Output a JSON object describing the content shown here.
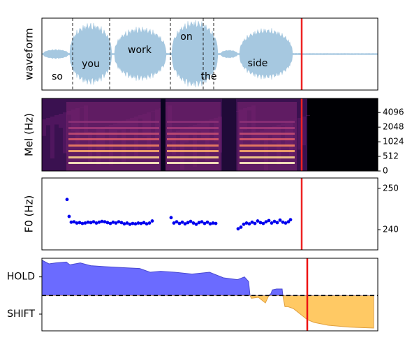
{
  "chart_data": [
    {
      "type": "waveform",
      "ylabel": "waveform",
      "xlim": [
        0,
        481
      ],
      "words": [
        "so",
        "you",
        "work",
        "on",
        "the",
        "side"
      ],
      "word_x": [
        22,
        70,
        140,
        207,
        239,
        309
      ],
      "boundaries": [
        44,
        97,
        184,
        231,
        246
      ],
      "marker_x": 372,
      "marker_color": "#ee2222",
      "color": "#a6c8e0"
    },
    {
      "type": "spectrogram",
      "ylabel": "Mel (Hz)",
      "xlim": [
        0,
        481
      ],
      "yscale": "symlog2",
      "linthresh": 512,
      "ylim": [
        0,
        8000
      ],
      "yticks": [
        0,
        512,
        1024,
        2048,
        4096
      ],
      "marker_x": 372,
      "marker_color": "#ee2222"
    },
    {
      "type": "scatter",
      "ylabel": "F0 (Hz)",
      "xlim": [
        0,
        481
      ],
      "ylim": [
        235.1,
        252.5
      ],
      "yticks": [
        240,
        250
      ],
      "color": "#0000ee",
      "marker_x": 372,
      "marker_color": "#ee2222",
      "x": [
        36,
        39,
        42,
        46,
        50,
        54,
        58,
        62,
        66,
        70,
        74,
        78,
        82,
        86,
        90,
        94,
        98,
        102,
        106,
        110,
        114,
        118,
        122,
        126,
        130,
        134,
        138,
        142,
        146,
        150,
        154,
        158,
        185,
        189,
        193,
        197,
        201,
        205,
        209,
        213,
        217,
        221,
        225,
        229,
        233,
        237,
        241,
        245,
        249,
        281,
        285,
        289,
        293,
        297,
        301,
        305,
        309,
        313,
        317,
        321,
        325,
        329,
        333,
        337,
        341,
        345,
        349,
        353,
        356
      ],
      "y": [
        247.3,
        243.2,
        241.8,
        241.9,
        241.6,
        241.7,
        241.5,
        241.6,
        241.8,
        241.7,
        241.9,
        241.6,
        241.8,
        242.0,
        241.9,
        241.7,
        241.5,
        241.8,
        241.6,
        241.9,
        241.7,
        241.4,
        241.6,
        241.3,
        241.5,
        241.4,
        241.6,
        241.5,
        241.7,
        241.4,
        241.6,
        242.1,
        242.9,
        241.6,
        241.9,
        241.5,
        241.8,
        241.4,
        241.7,
        242.0,
        241.6,
        241.3,
        241.7,
        241.9,
        241.5,
        241.8,
        241.4,
        241.6,
        241.5,
        240.2,
        240.6,
        241.3,
        241.6,
        241.4,
        241.8,
        241.5,
        242.1,
        241.7,
        241.5,
        241.9,
        242.2,
        241.6,
        242.0,
        241.7,
        242.3,
        241.8,
        241.6,
        241.9,
        242.4
      ]
    },
    {
      "type": "area",
      "xlim": [
        0,
        481
      ],
      "ylim": [
        -1.9,
        2.0
      ],
      "yticks": [
        {
          "value": 1,
          "label": "HOLD"
        },
        {
          "value": -1,
          "label": "SHIFT"
        }
      ],
      "hline": 0,
      "pos_color": "#6b6bff",
      "neg_color": "#ffc964",
      "marker_x": 380,
      "marker_color": "#ee1111",
      "x": [
        0,
        10,
        20,
        35,
        40,
        55,
        70,
        90,
        115,
        140,
        155,
        170,
        190,
        215,
        240,
        260,
        280,
        290,
        296,
        298,
        300,
        310,
        320,
        325,
        328,
        330,
        336,
        344,
        345,
        348,
        352,
        360,
        380,
        390,
        410,
        440,
        475
      ],
      "values": [
        1.9,
        1.7,
        1.75,
        1.8,
        1.65,
        1.75,
        1.6,
        1.55,
        1.5,
        1.45,
        1.25,
        1.3,
        1.25,
        1.15,
        1.25,
        0.95,
        0.85,
        1.0,
        0.75,
        0,
        -0.15,
        -0.1,
        -0.4,
        0,
        0.1,
        0.3,
        0.35,
        0.35,
        0,
        -0.6,
        -0.6,
        -0.7,
        -1.3,
        -1.45,
        -1.6,
        -1.7,
        -1.75
      ]
    }
  ]
}
